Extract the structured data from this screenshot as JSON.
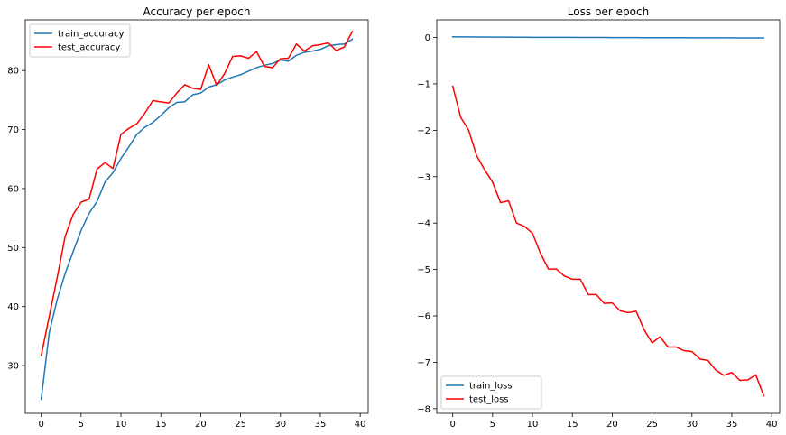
{
  "chart_data": [
    {
      "type": "line",
      "title": "Accuracy per epoch",
      "xlabel": "",
      "ylabel": "",
      "xlim": [
        -2,
        41
      ],
      "ylim": [
        21.9,
        88.6
      ],
      "xticks": [
        0,
        5,
        10,
        15,
        20,
        25,
        30,
        35,
        40
      ],
      "yticks": [
        30,
        40,
        50,
        60,
        70,
        80
      ],
      "grid": false,
      "legend_position": "upper left",
      "x": [
        0,
        1,
        2,
        3,
        4,
        5,
        6,
        7,
        8,
        9,
        10,
        11,
        12,
        13,
        14,
        15,
        16,
        17,
        18,
        19,
        20,
        21,
        22,
        23,
        24,
        25,
        26,
        27,
        28,
        29,
        30,
        31,
        32,
        33,
        34,
        35,
        36,
        37,
        38,
        39
      ],
      "series": [
        {
          "name": "train_accuracy",
          "color": "#1f77b4",
          "values": [
            24.3,
            35.5,
            41.2,
            45.6,
            49.3,
            52.9,
            55.8,
            57.8,
            61.1,
            62.7,
            65.1,
            67.1,
            69.2,
            70.4,
            71.2,
            72.4,
            73.7,
            74.6,
            74.7,
            75.9,
            76.2,
            77.2,
            77.6,
            78.4,
            78.9,
            79.3,
            79.9,
            80.5,
            80.9,
            81.2,
            81.8,
            81.6,
            82.6,
            83.1,
            83.3,
            83.6,
            84.2,
            84.4,
            84.5,
            85.3
          ]
        },
        {
          "name": "test_accuracy",
          "color": "#ff0000",
          "values": [
            31.7,
            38.3,
            44.9,
            51.9,
            55.6,
            57.7,
            58.2,
            63.3,
            64.4,
            63.4,
            69.2,
            70.2,
            71.0,
            72.8,
            74.9,
            74.7,
            74.5,
            76.2,
            77.6,
            77.0,
            76.8,
            81.0,
            77.5,
            79.5,
            82.4,
            82.5,
            82.1,
            83.2,
            80.7,
            80.5,
            82.0,
            82.1,
            84.5,
            83.3,
            84.2,
            84.4,
            84.7,
            83.4,
            84.0,
            86.6
          ]
        }
      ]
    },
    {
      "type": "line",
      "title": "Loss per epoch",
      "xlabel": "",
      "ylabel": "",
      "xlim": [
        -2,
        41
      ],
      "ylim": [
        -8.1,
        0.38
      ],
      "xticks": [
        0,
        5,
        10,
        15,
        20,
        25,
        30,
        35,
        40
      ],
      "yticks": [
        0,
        -1,
        -2,
        -3,
        -4,
        -5,
        -6,
        -7,
        -8
      ],
      "grid": false,
      "legend_position": "lower left",
      "x": [
        0,
        1,
        2,
        3,
        4,
        5,
        6,
        7,
        8,
        9,
        10,
        11,
        12,
        13,
        14,
        15,
        16,
        17,
        18,
        19,
        20,
        21,
        22,
        23,
        24,
        25,
        26,
        27,
        28,
        29,
        30,
        31,
        32,
        33,
        34,
        35,
        36,
        37,
        38,
        39
      ],
      "series": [
        {
          "name": "train_loss",
          "color": "#1f77b4",
          "values": [
            0.015,
            0.013,
            0.012,
            0.011,
            0.01,
            0.009,
            0.008,
            0.007,
            0.006,
            0.005,
            0.004,
            0.004,
            0.003,
            0.003,
            0.002,
            0.002,
            0.001,
            0.001,
            0.0,
            0.0,
            -0.001,
            -0.001,
            -0.002,
            -0.002,
            -0.003,
            -0.003,
            -0.004,
            -0.004,
            -0.005,
            -0.005,
            -0.006,
            -0.006,
            -0.006,
            -0.007,
            -0.007,
            -0.007,
            -0.008,
            -0.008,
            -0.008,
            -0.008
          ]
        },
        {
          "name": "test_loss",
          "color": "#ff0000",
          "values": [
            -1.05,
            -1.72,
            -2.0,
            -2.55,
            -2.85,
            -3.12,
            -3.56,
            -3.52,
            -4.0,
            -4.07,
            -4.22,
            -4.65,
            -4.99,
            -4.99,
            -5.14,
            -5.21,
            -5.21,
            -5.54,
            -5.54,
            -5.73,
            -5.72,
            -5.89,
            -5.93,
            -5.9,
            -6.3,
            -6.58,
            -6.45,
            -6.67,
            -6.67,
            -6.75,
            -6.77,
            -6.93,
            -6.96,
            -7.17,
            -7.28,
            -7.22,
            -7.39,
            -7.38,
            -7.27,
            -7.72
          ]
        }
      ]
    }
  ]
}
